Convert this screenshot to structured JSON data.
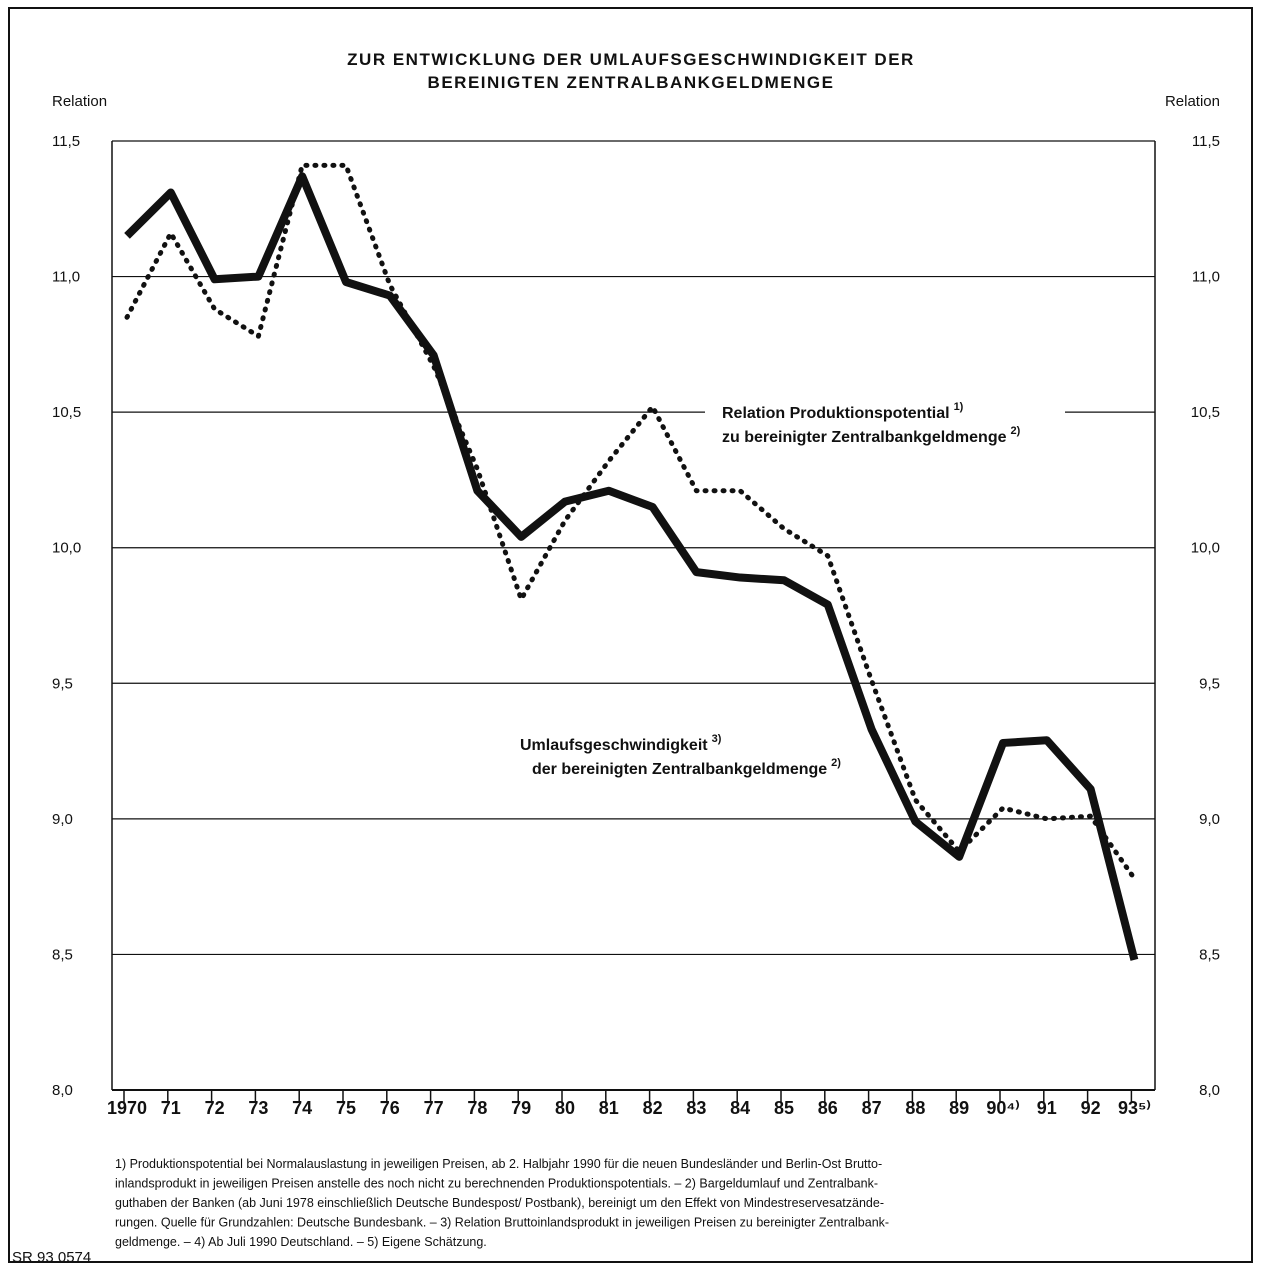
{
  "chart_data": {
    "type": "line",
    "title": [
      "ZUR ENTWICKLUNG DER UMLAUFSGESCHWINDIGKEIT DER",
      "BEREINIGTEN ZENTRALBANKGELDMENGE"
    ],
    "ylabel": "Relation",
    "y2label": "Relation",
    "categories": [
      "1970",
      "71",
      "72",
      "73",
      "74",
      "75",
      "76",
      "77",
      "78",
      "79",
      "80",
      "81",
      "82",
      "83",
      "84",
      "85",
      "86",
      "87",
      "88",
      "89",
      "90⁴⁾",
      "91",
      "92",
      "93⁵⁾"
    ],
    "series": [
      {
        "name": "Umlaufsgeschwindigkeit der bereinigten Zentralbankgeldmenge",
        "color": "#111111",
        "style": "solid",
        "values": [
          11.15,
          11.31,
          10.99,
          11.0,
          11.37,
          10.98,
          10.93,
          10.71,
          10.21,
          10.04,
          10.17,
          10.21,
          10.15,
          9.91,
          9.89,
          9.88,
          9.79,
          9.33,
          8.99,
          8.86,
          9.28,
          9.29,
          9.11,
          8.48
        ]
      },
      {
        "name": "Relation Produktionspotential zu bereinigter Zentralbankgeldmenge",
        "color": "#111111",
        "style": "dotted",
        "values": [
          10.85,
          11.16,
          10.88,
          10.78,
          11.41,
          11.41,
          10.97,
          10.67,
          10.29,
          9.81,
          10.1,
          10.32,
          10.52,
          10.21,
          10.21,
          10.07,
          9.97,
          9.51,
          9.07,
          8.88,
          9.04,
          9.0,
          9.01,
          8.78
        ]
      }
    ],
    "ylim": [
      8.0,
      11.5
    ],
    "yticks": [
      {
        "value": 8.0,
        "label": "8,0"
      },
      {
        "value": 8.5,
        "label": "8,5"
      },
      {
        "value": 9.0,
        "label": "9,0"
      },
      {
        "value": 9.5,
        "label": "9,5"
      },
      {
        "value": 10.0,
        "label": "10,0"
      },
      {
        "value": 10.5,
        "label": "10,5"
      },
      {
        "value": 11.0,
        "label": "11,0"
      },
      {
        "value": 11.5,
        "label": "11,5"
      }
    ],
    "grid": true,
    "annotations": [
      {
        "text": "Relation Produktionspotential",
        "sup": "1)"
      },
      {
        "text": "zu bereinigter Zentralbankgeldmenge",
        "sup": "2)"
      },
      {
        "text": "Umlaufsgeschwindigkeit",
        "sup": "3)"
      },
      {
        "text": "der bereinigten Zentralbankgeldmenge",
        "sup": "2)"
      }
    ],
    "footnotes": [
      "1) Produktionspotential bei Normalauslastung in jeweiligen Preisen, ab 2. Halbjahr 1990 für die neuen Bundesländer und Berlin-Ost Brutto-",
      "inlandsprodukt in jeweiligen Preisen anstelle des noch nicht zu berechnenden Produktionspotentials. – 2) Bargeldumlauf und Zentralbank-",
      "guthaben der Banken (ab Juni 1978 einschließlich Deutsche Bundespost/ Postbank), bereinigt um den Effekt von Mindestreservesatzände-",
      "rungen. Quelle für Grundzahlen: Deutsche Bundesbank. – 3) Relation Bruttoinlandsprodukt in jeweiligen Preisen zu bereinigter Zentralbank-",
      "geldmenge. – 4) Ab Juli 1990 Deutschland. – 5) Eigene Schätzung."
    ],
    "source": "SR 93 0574"
  }
}
